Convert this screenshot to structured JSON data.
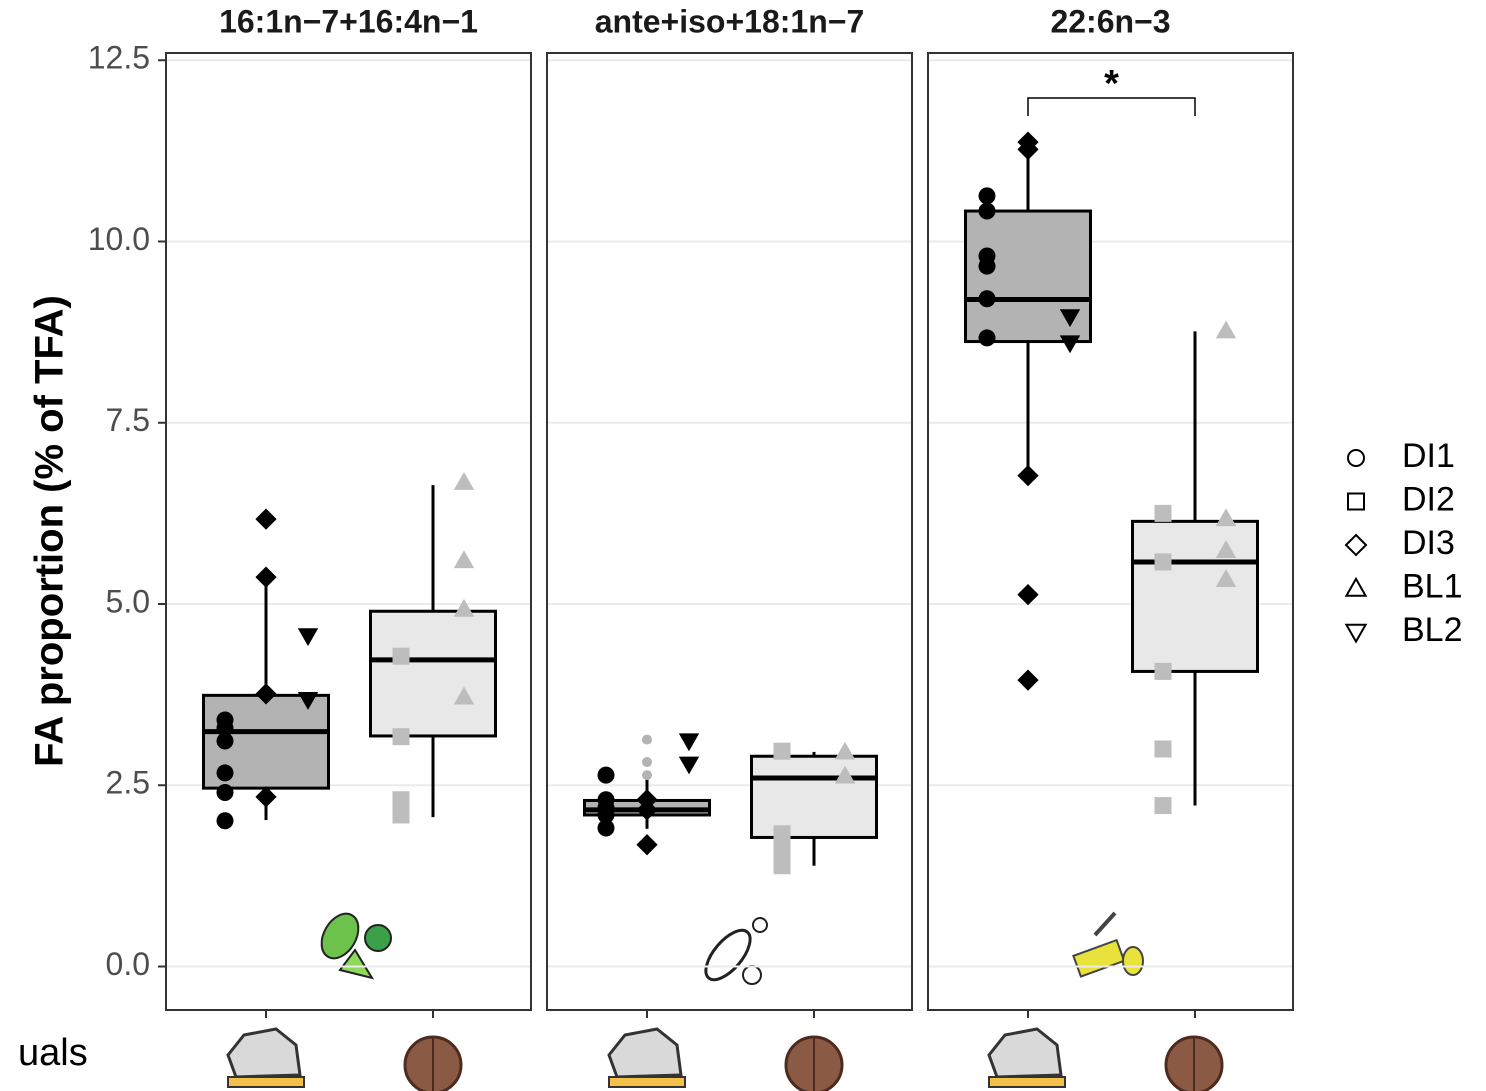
{
  "chart_data": {
    "type": "box",
    "ylabel": "FA proportion (% of TFA)",
    "ylim": [
      -0.6,
      12.6
    ],
    "yticks": [
      {
        "value": 0,
        "label": "0.0"
      },
      {
        "value": 2.5,
        "label": "2.5"
      },
      {
        "value": 5,
        "label": "5.0"
      },
      {
        "value": 7.5,
        "label": "7.5"
      },
      {
        "value": 10,
        "label": "10.0"
      },
      {
        "value": 12.5,
        "label": "12.5"
      }
    ],
    "grid": true,
    "box_colors": [
      "#b3b3b3",
      "#e8e8e8"
    ],
    "point_colors": [
      "#000000",
      "#bdbdbd"
    ],
    "legend": {
      "position": "right",
      "entries": [
        {
          "name": "DI1",
          "shape": "circle"
        },
        {
          "name": "DI2",
          "shape": "square"
        },
        {
          "name": "DI3",
          "shape": "diamond"
        },
        {
          "name": "BL1",
          "shape": "triangle"
        },
        {
          "name": "BL2",
          "shape": "triangle-down"
        }
      ]
    },
    "panels": [
      {
        "title": "16:1n−7+16:4n−1",
        "categories": [
          null,
          null
        ],
        "boxes": [
          {
            "q1": 2.46,
            "median": 3.24,
            "q3": 3.74,
            "whisker_low": 2.02,
            "whisker_high": 5.36,
            "points": [
              [
                3.4,
                3.29,
                3.11,
                2.67,
                2.4,
                2.01
              ],
              [],
              [
                6.17,
                5.37,
                3.76,
                2.34
              ],
              [],
              [
                4.56,
                3.68
              ]
            ]
          },
          {
            "q1": 3.18,
            "median": 4.23,
            "q3": 4.9,
            "whisker_low": 2.06,
            "whisker_high": 6.64,
            "points": [
              [],
              [
                4.28,
                3.17,
                2.3,
                2.09
              ],
              [],
              [
                6.68,
                5.6,
                4.93,
                3.72
              ],
              []
            ]
          }
        ]
      },
      {
        "title": "ante+iso+18:1n−7",
        "categories": [
          null,
          null
        ],
        "boxes": [
          {
            "q1": 2.09,
            "median": 2.16,
            "q3": 2.29,
            "whisker_low": 1.9,
            "whisker_high": 2.67,
            "outliers": [
              3.13,
              2.82,
              2.64
            ],
            "points": [
              [
                2.64,
                2.3,
                2.19,
                2.09,
                1.91
              ],
              [],
              [
                2.3,
                2.16,
                1.68
              ],
              [],
              [
                3.11,
                2.79
              ]
            ]
          },
          {
            "q1": 1.78,
            "median": 2.6,
            "q3": 2.9,
            "whisker_low": 1.39,
            "whisker_high": 2.96,
            "points": [
              [],
              [
                2.97,
                1.83,
                1.71,
                1.58,
                1.39
              ],
              [],
              [
                2.96,
                2.63
              ],
              []
            ]
          }
        ]
      },
      {
        "title": "22:6n−3",
        "categories": [
          null,
          null
        ],
        "annotation": "*",
        "boxes": [
          {
            "q1": 8.62,
            "median": 9.2,
            "q3": 10.42,
            "whisker_low": 6.77,
            "whisker_high": 11.27,
            "points": [
              [
                10.63,
                10.42,
                9.8,
                9.66,
                9.21,
                8.67
              ],
              [],
              [
                11.37,
                11.27,
                6.77,
                5.13,
                3.95
              ],
              [],
              [
                8.96,
                8.6
              ]
            ]
          },
          {
            "q1": 4.07,
            "median": 5.58,
            "q3": 6.14,
            "whisker_low": 2.22,
            "whisker_high": 8.76,
            "points": [
              [],
              [
                6.25,
                5.58,
                4.07,
                3.0,
                2.22
              ],
              [],
              [
                8.77,
                6.18,
                5.74,
                5.34
              ],
              []
            ]
          }
        ]
      }
    ]
  },
  "fragment_text": "uals"
}
